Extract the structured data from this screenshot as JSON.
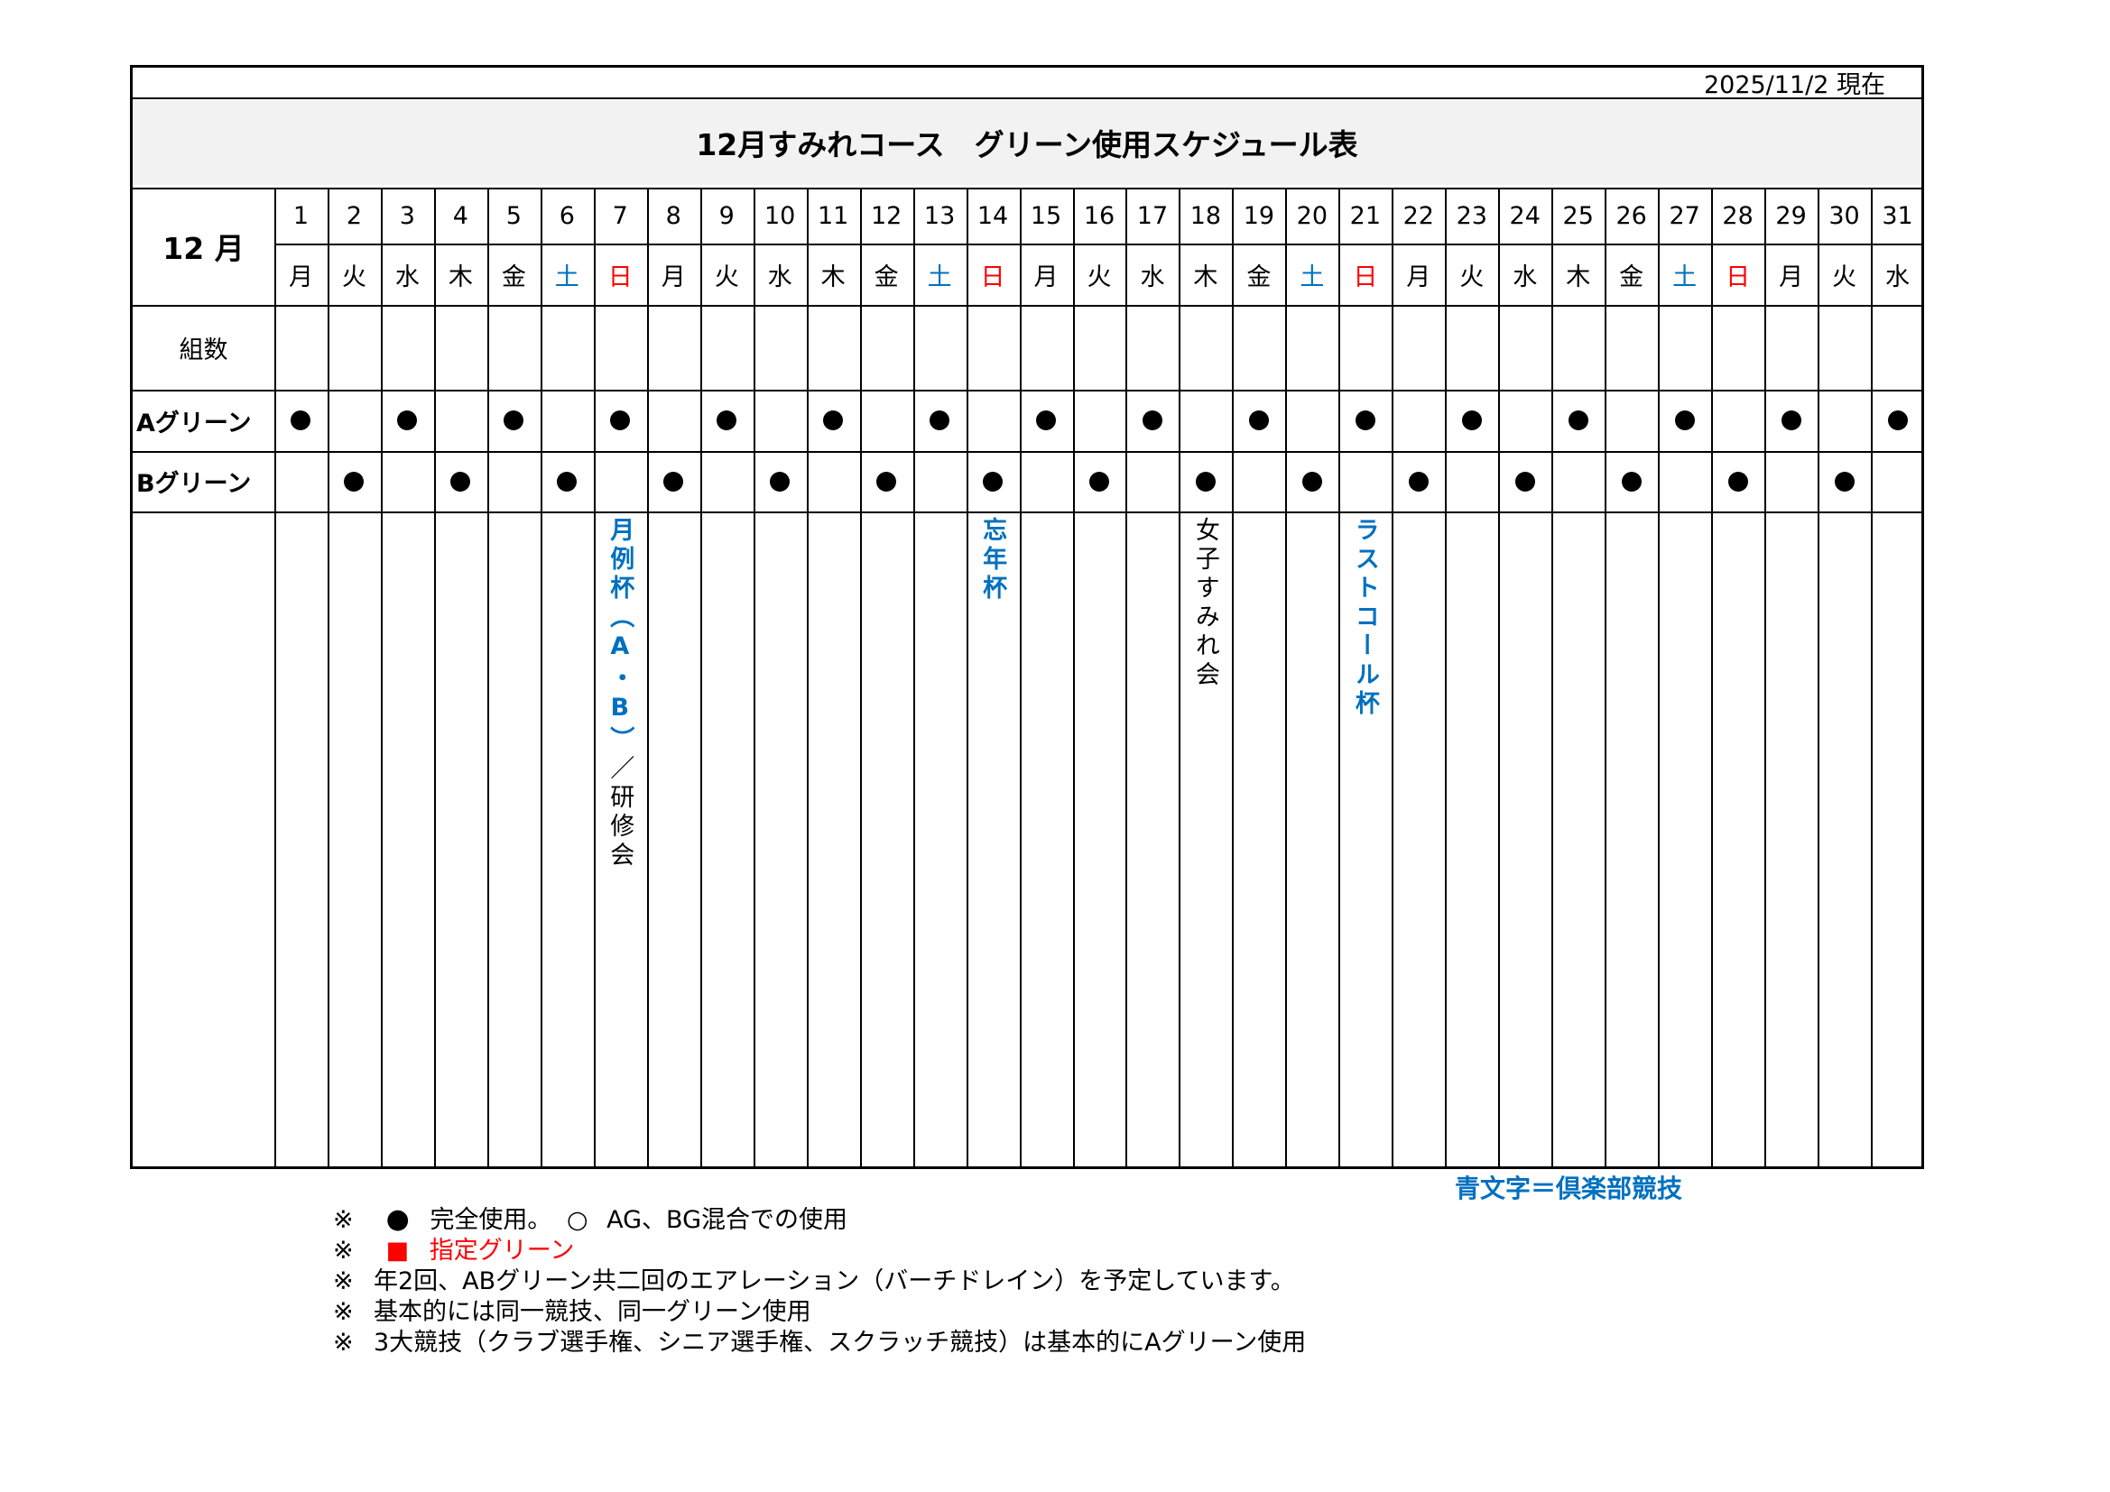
{
  "header": {
    "as_of": "2025/11/2 現在",
    "title": "12月すみれコース　グリーン使用スケジュール表"
  },
  "month_label": "12 月",
  "row_labels": {
    "groups": "組数",
    "a_green": "Aグリーン",
    "b_green": "Bグリーン"
  },
  "colors": {
    "saturday": "#0070c0",
    "sunday": "#ff0000",
    "club_event": "#0070c0",
    "designated": "#ff0000"
  },
  "days": [
    {
      "d": "1",
      "w": "月",
      "a": true,
      "b": false
    },
    {
      "d": "2",
      "w": "火",
      "a": false,
      "b": true
    },
    {
      "d": "3",
      "w": "水",
      "a": true,
      "b": false
    },
    {
      "d": "4",
      "w": "木",
      "a": false,
      "b": true
    },
    {
      "d": "5",
      "w": "金",
      "a": true,
      "b": false
    },
    {
      "d": "6",
      "w": "土",
      "a": false,
      "b": true
    },
    {
      "d": "7",
      "w": "日",
      "a": true,
      "b": false
    },
    {
      "d": "8",
      "w": "月",
      "a": false,
      "b": true
    },
    {
      "d": "9",
      "w": "火",
      "a": true,
      "b": false
    },
    {
      "d": "10",
      "w": "水",
      "a": false,
      "b": true
    },
    {
      "d": "11",
      "w": "木",
      "a": true,
      "b": false
    },
    {
      "d": "12",
      "w": "金",
      "a": false,
      "b": true
    },
    {
      "d": "13",
      "w": "土",
      "a": true,
      "b": false
    },
    {
      "d": "14",
      "w": "日",
      "a": false,
      "b": true
    },
    {
      "d": "15",
      "w": "月",
      "a": true,
      "b": false
    },
    {
      "d": "16",
      "w": "火",
      "a": false,
      "b": true
    },
    {
      "d": "17",
      "w": "水",
      "a": true,
      "b": false
    },
    {
      "d": "18",
      "w": "木",
      "a": false,
      "b": true
    },
    {
      "d": "19",
      "w": "金",
      "a": true,
      "b": false
    },
    {
      "d": "20",
      "w": "土",
      "a": false,
      "b": true
    },
    {
      "d": "21",
      "w": "日",
      "a": true,
      "b": false
    },
    {
      "d": "22",
      "w": "月",
      "a": false,
      "b": true
    },
    {
      "d": "23",
      "w": "火",
      "a": true,
      "b": false
    },
    {
      "d": "24",
      "w": "水",
      "a": false,
      "b": true
    },
    {
      "d": "25",
      "w": "木",
      "a": true,
      "b": false
    },
    {
      "d": "26",
      "w": "金",
      "a": false,
      "b": true
    },
    {
      "d": "27",
      "w": "土",
      "a": true,
      "b": false
    },
    {
      "d": "28",
      "w": "日",
      "a": false,
      "b": true
    },
    {
      "d": "29",
      "w": "月",
      "a": true,
      "b": false
    },
    {
      "d": "30",
      "w": "火",
      "a": false,
      "b": true
    },
    {
      "d": "31",
      "w": "水",
      "a": true,
      "b": false
    }
  ],
  "events": [
    {
      "day": "7",
      "parts": [
        {
          "text": "月例杯（A・B）",
          "club": true
        },
        {
          "text": "／研修会",
          "club": false
        }
      ]
    },
    {
      "day": "14",
      "parts": [
        {
          "text": "忘年杯",
          "club": true
        }
      ]
    },
    {
      "day": "18",
      "parts": [
        {
          "text": "女子すみれ会",
          "club": false
        }
      ]
    },
    {
      "day": "21",
      "parts": [
        {
          "text": "ラストコール杯",
          "club": true
        }
      ]
    }
  ],
  "legend": {
    "club_text": "青文字＝倶楽部競技"
  },
  "notes": [
    {
      "mark": "※",
      "symbol": "●",
      "text": "完全使用。",
      "symbol2": "○",
      "text2": "AG、BG混合での使用"
    },
    {
      "mark": "※",
      "symbol": "■",
      "text": "指定グリーン"
    },
    {
      "mark": "※",
      "text": "年2回、ABグリーン共二回のエアレーション（バーチドレイン）を予定しています。"
    },
    {
      "mark": "※",
      "text": "基本的には同一競技、同一グリーン使用"
    },
    {
      "mark": "※",
      "text": "3大競技（クラブ選手権、シニア選手権、スクラッチ競技）は基本的にAグリーン使用"
    }
  ]
}
